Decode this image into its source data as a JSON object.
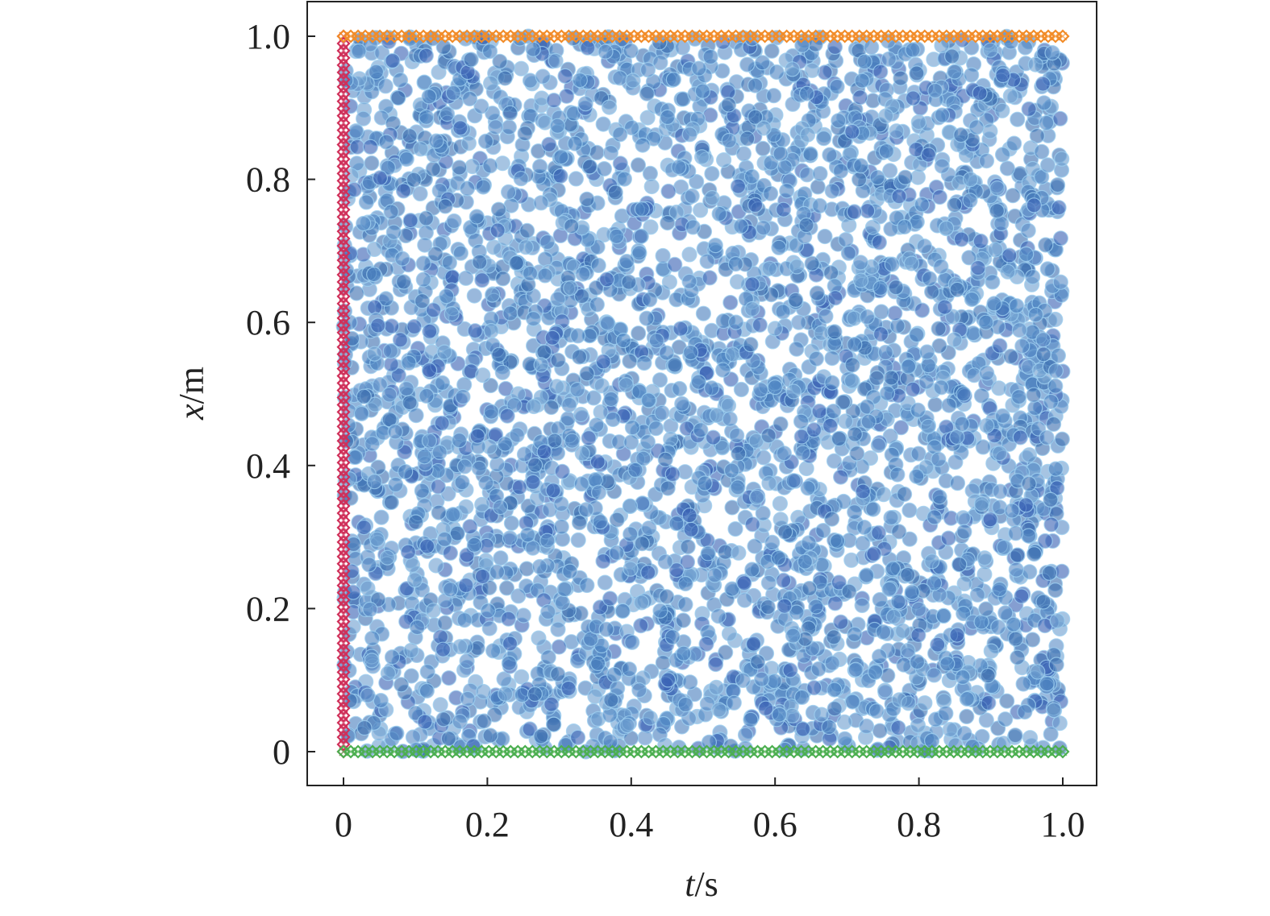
{
  "chart_data": {
    "type": "scatter",
    "title": "",
    "xlabel": {
      "var": "t",
      "unit": "/s"
    },
    "ylabel": {
      "var": "x",
      "unit": "/m"
    },
    "xlim": [
      -0.05,
      1.05
    ],
    "ylim": [
      -0.05,
      1.05
    ],
    "x_ticks": [
      0,
      0.2,
      0.4,
      0.6,
      0.8,
      1.0
    ],
    "x_tick_labels": [
      "0",
      "0.2",
      "0.4",
      "0.6",
      "0.8",
      "1.0"
    ],
    "y_ticks": [
      0,
      0.2,
      0.4,
      0.6,
      0.8,
      1.0
    ],
    "y_tick_labels": [
      "0",
      "0.2",
      "0.4",
      "0.6",
      "0.8",
      "1.0"
    ],
    "grid": false,
    "legend": "none",
    "series": [
      {
        "role": "interior collocation points",
        "marker": "circle",
        "color": "#4a78b8",
        "x_range": [
          0,
          1
        ],
        "y_range": [
          0,
          1
        ],
        "count": 4000,
        "distribution": "uniform random"
      },
      {
        "role": "initial condition points",
        "marker": "diamond",
        "color": "#d0305a",
        "x": 0,
        "y_range": [
          0,
          1
        ],
        "count": 100
      },
      {
        "role": "boundary points x=0",
        "marker": "diamond",
        "color": "#4caf50",
        "y": 0,
        "x_range": [
          0,
          1
        ],
        "count": 100
      },
      {
        "role": "boundary points x=1",
        "marker": "diamond",
        "color": "#f28c28",
        "y": 1,
        "x_range": [
          0,
          1
        ],
        "count": 100
      }
    ]
  }
}
